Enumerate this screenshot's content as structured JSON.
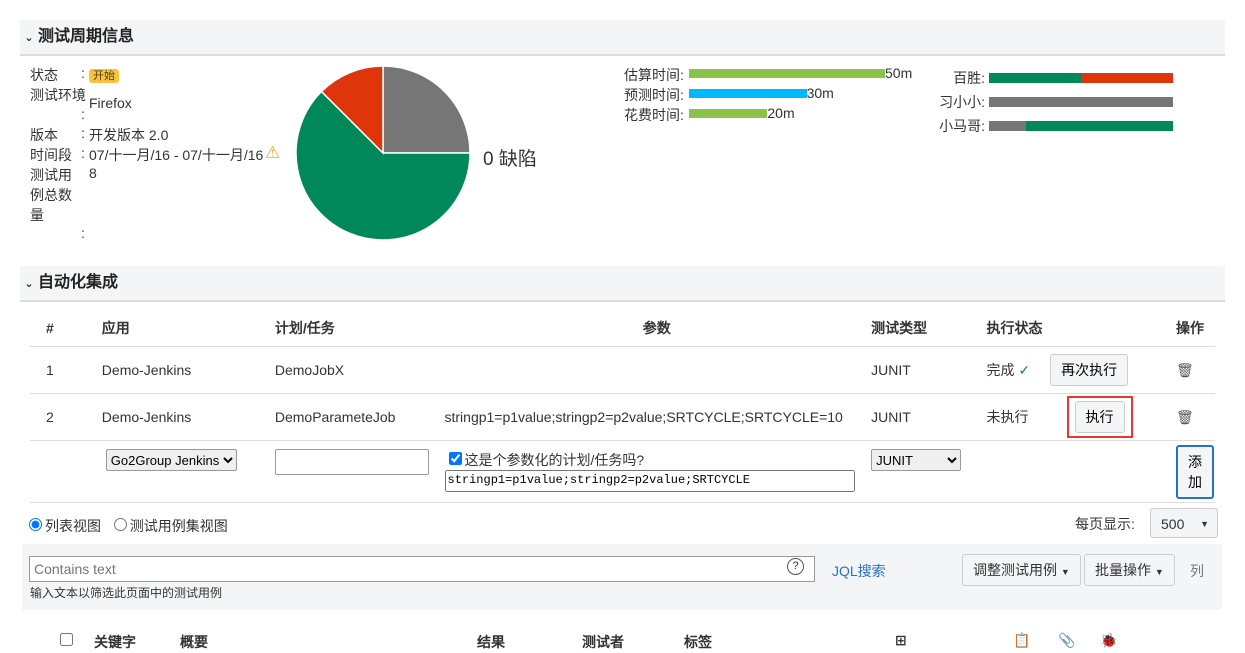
{
  "cycle_section": {
    "title": "测试周期信息",
    "status_label": "状态",
    "status": "开始",
    "env_label": "测试环境",
    "env": "Firefox",
    "version_label": "版本",
    "version": "开发版本 2.0",
    "period_label": "时间段",
    "period": "07/十一月/16 - 07/十一月/16",
    "total_label_1": "测试用",
    "total_label_2": "例总数",
    "total_label_3": "量",
    "total": "8",
    "colon": ":",
    "defects": "0 缺陷"
  },
  "pie": {
    "slices": [
      {
        "value": 2,
        "color": "#767676"
      },
      {
        "value": 5,
        "color": "#00875a"
      },
      {
        "value": 1,
        "color": "#de350b"
      }
    ]
  },
  "times": [
    {
      "label": "估算时间:",
      "value": "50m",
      "minutes": 50,
      "color": "#8bc34a"
    },
    {
      "label": "预测时间:",
      "value": "30m",
      "minutes": 30,
      "color": "#00b8ff"
    },
    {
      "label": "花费时间:",
      "value": "20m",
      "minutes": 20,
      "color": "#8bc34a"
    }
  ],
  "testers": [
    {
      "name": "百胜:",
      "segments": [
        {
          "frac": 0.5,
          "color": "#00875a"
        },
        {
          "frac": 0.5,
          "color": "#de350b"
        }
      ]
    },
    {
      "name": "习小小:",
      "segments": [
        {
          "frac": 1,
          "color": "#767676"
        }
      ]
    },
    {
      "name": "小马哥:",
      "segments": [
        {
          "frac": 0.2,
          "color": "#767676"
        },
        {
          "frac": 0.8,
          "color": "#00875a"
        }
      ]
    }
  ],
  "auto_section": {
    "title": "自动化集成",
    "headers": [
      "#",
      "应用",
      "计划/任务",
      "参数",
      "测试类型",
      "执行状态",
      "操作"
    ],
    "rows": [
      {
        "no": "1",
        "app": "Demo-Jenkins",
        "job": "DemoJobX",
        "params": "",
        "type": "JUNIT",
        "status": "完成",
        "action": "再次执行"
      },
      {
        "no": "2",
        "app": "Demo-Jenkins",
        "job": "DemoParameteJob",
        "params": "stringp1=p1value;stringp2=p2value;SRTCYCLE;SRTCYCLE=10",
        "type": "JUNIT",
        "status": "未执行",
        "action": "执行"
      }
    ],
    "new_app": "Go2Group Jenkins",
    "new_job": "",
    "param_check": "这是个参数化的计划/任务吗?",
    "param_value": "stringp1=p1value;stringp2=p2value;SRTCYCLE",
    "new_type": "JUNIT",
    "add": "添加"
  },
  "view": {
    "list": "列表视图",
    "set": "测试用例集视图",
    "per_page_label": "每页显示:",
    "per_page": "500"
  },
  "filter": {
    "placeholder": "Contains text",
    "hint": "输入文本以筛选此页面中的测试用例",
    "jql": "JQL搜索",
    "adjust": "调整测试用例",
    "bulk": "批量操作",
    "columns": "列"
  },
  "grid_headers": {
    "key": "关键字",
    "summary": "概要",
    "result": "结果",
    "tester": "测试者",
    "labels": "标签"
  }
}
